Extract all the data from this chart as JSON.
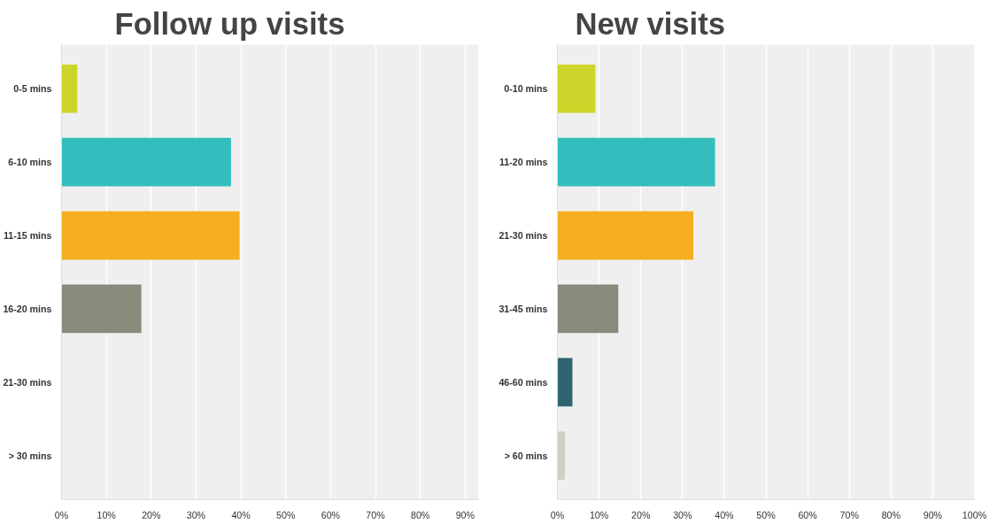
{
  "chart_data": [
    {
      "type": "bar",
      "orientation": "horizontal",
      "title": "Follow up visits",
      "categories": [
        "0-5 mins",
        "6-10 mins",
        "11-15 mins",
        "16-20 mins",
        "21-30 mins",
        "> 30 mins"
      ],
      "values": [
        3.5,
        37.8,
        39.7,
        17.8,
        0,
        0
      ],
      "colors": [
        "#cdd42a",
        "#33bdbd",
        "#f5ae20",
        "#8a8a7a",
        "#2e6470",
        "#d0d0c0"
      ],
      "xlim": [
        0,
        93
      ],
      "xticks": [
        {
          "value": 0,
          "label": "0%"
        },
        {
          "value": 10,
          "label": "10%"
        },
        {
          "value": 20,
          "label": "20%"
        },
        {
          "value": 30,
          "label": "30%"
        },
        {
          "value": 40,
          "label": "40%"
        },
        {
          "value": 50,
          "label": "50%"
        },
        {
          "value": 60,
          "label": "60%"
        },
        {
          "value": 70,
          "label": "70%"
        },
        {
          "value": 80,
          "label": "80%"
        },
        {
          "value": 90,
          "label": "90%"
        }
      ],
      "grid": "x"
    },
    {
      "type": "bar",
      "orientation": "horizontal",
      "title": "New visits",
      "categories": [
        "0-10 mins",
        "11-20 mins",
        "21-30 mins",
        "31-45 mins",
        "46-60 mins",
        "> 60 mins"
      ],
      "values": [
        9.1,
        37.8,
        32.6,
        14.6,
        3.6,
        1.8
      ],
      "colors": [
        "#cdd42a",
        "#33bdbd",
        "#f5ae20",
        "#8a8a7a",
        "#2e6470",
        "#d0d0c0"
      ],
      "xlim": [
        0,
        100
      ],
      "xticks": [
        {
          "value": 0,
          "label": "0%"
        },
        {
          "value": 10,
          "label": "10%"
        },
        {
          "value": 20,
          "label": "20%"
        },
        {
          "value": 30,
          "label": "30%"
        },
        {
          "value": 40,
          "label": "40%"
        },
        {
          "value": 50,
          "label": "50%"
        },
        {
          "value": 60,
          "label": "60%"
        },
        {
          "value": 70,
          "label": "70%"
        },
        {
          "value": 80,
          "label": "80%"
        },
        {
          "value": 90,
          "label": "90%"
        },
        {
          "value": 100,
          "label": "100%"
        }
      ],
      "grid": "x"
    }
  ]
}
